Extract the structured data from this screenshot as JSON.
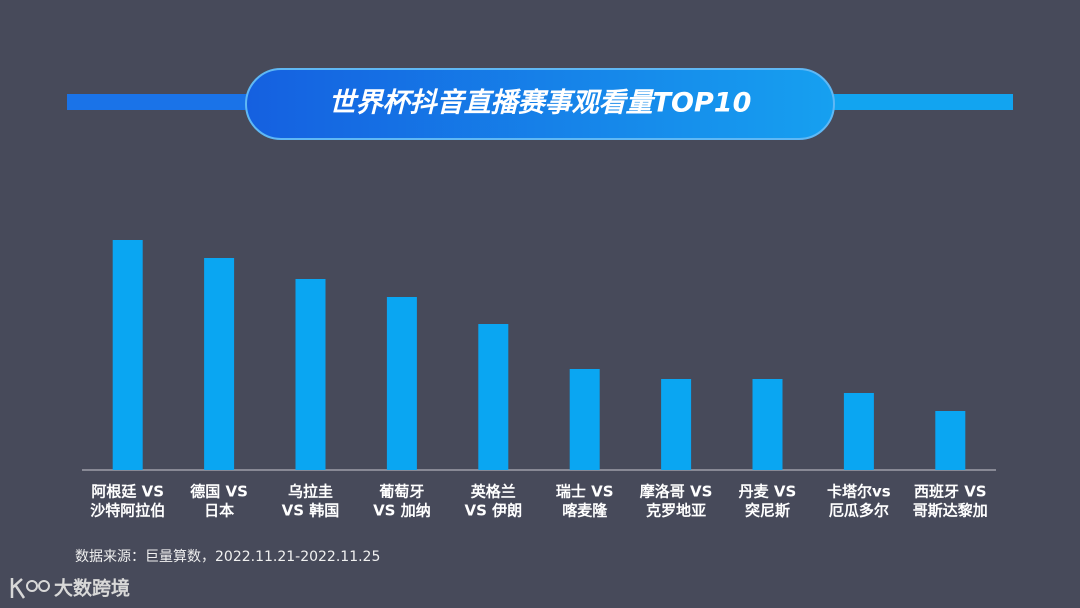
{
  "chart_data": {
    "type": "bar",
    "title": "世界杯抖音直播赛事观看量TOP10",
    "categories": [
      [
        "阿根廷 VS",
        "沙特阿拉伯"
      ],
      [
        "德国 VS",
        "日本"
      ],
      [
        "乌拉圭",
        "VS 韩国"
      ],
      [
        "葡萄牙",
        "VS 加纳"
      ],
      [
        "英格兰",
        "VS 伊朗"
      ],
      [
        "瑞士 VS",
        "喀麦隆"
      ],
      [
        "摩洛哥 VS",
        "克罗地亚"
      ],
      [
        "丹麦 VS",
        "突尼斯"
      ],
      [
        "卡塔尔vs",
        "厄瓜多尔"
      ],
      [
        "西班牙 VS",
        "哥斯达黎加"
      ]
    ],
    "values": [
      230,
      212,
      191,
      173,
      146,
      101,
      91,
      91,
      77,
      59
    ],
    "color": "#0aa6f2",
    "source": "数据来源：巨量算数，2022.11.21-2022.11.25",
    "brand": "大数跨境"
  }
}
